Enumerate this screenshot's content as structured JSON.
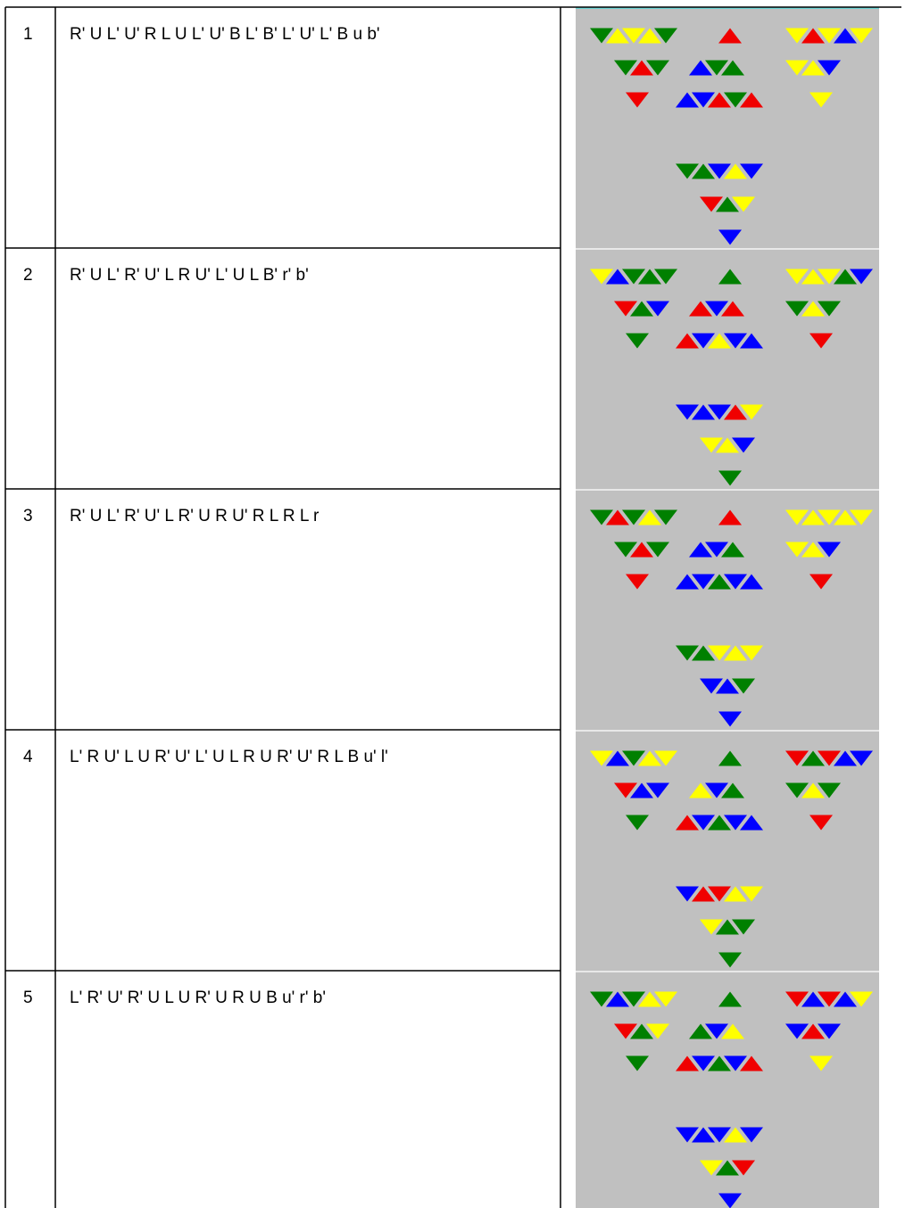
{
  "table": {
    "rows": [
      [
        "1",
        "R' U L' U' R L U L' U' B L' B' L' U' L' B u b'"
      ],
      [
        "2",
        "R' U L' R' U' L R U' L' U L B' r' b'"
      ],
      [
        "3",
        "R' U L' R' U' L R' U R U' R L R L r"
      ],
      [
        "4",
        "L' R U' L U R' U' L' U L R U R' U' R L B u' l'"
      ],
      [
        "5",
        "L' R' U' R' U L U R' U R U B u' r' b'"
      ]
    ]
  }
}
